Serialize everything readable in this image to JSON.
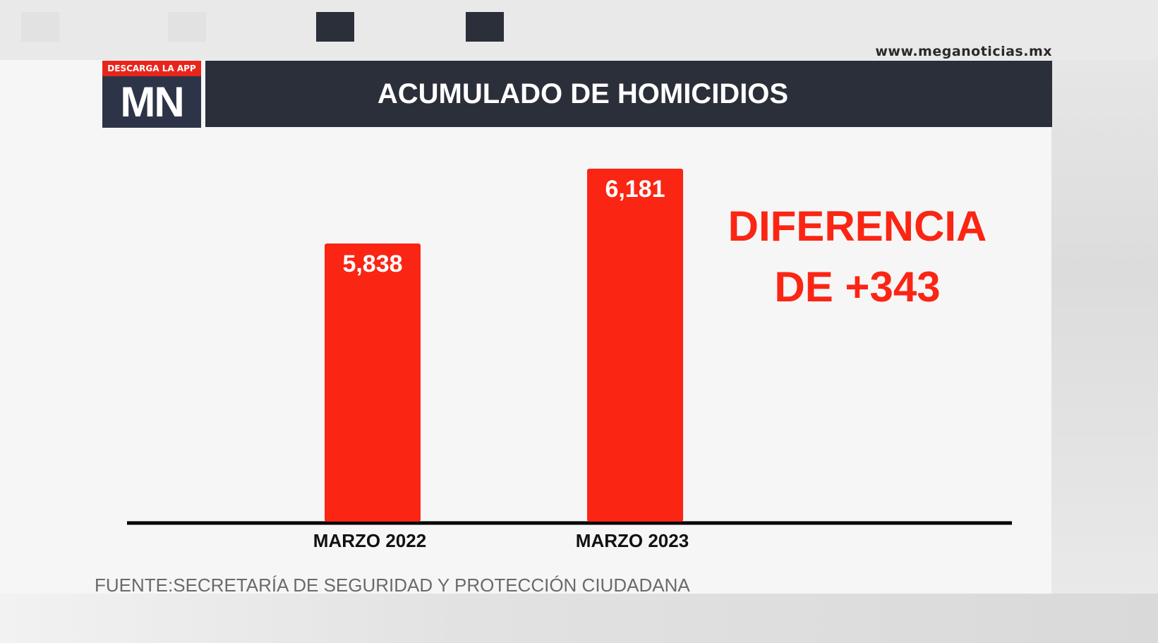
{
  "branding": {
    "url": "www.meganoticias.mx",
    "logo_tag": "DESCARGA LA APP",
    "logo_text": "MN"
  },
  "header": {
    "title": "ACUMULADO DE HOMICIDIOS"
  },
  "chart_data": {
    "type": "bar",
    "categories": [
      "MARZO 2022",
      "MARZO 2023"
    ],
    "values": [
      5838,
      6181
    ],
    "value_labels": [
      "5,838",
      "6,181"
    ],
    "bar_color": "#fb2514",
    "annotation": [
      "DIFERENCIA",
      "DE +343"
    ],
    "grid": false
  },
  "source": "FUENTE:SECRETARÍA DE SEGURIDAD Y PROTECCIÓN CIUDADANA"
}
